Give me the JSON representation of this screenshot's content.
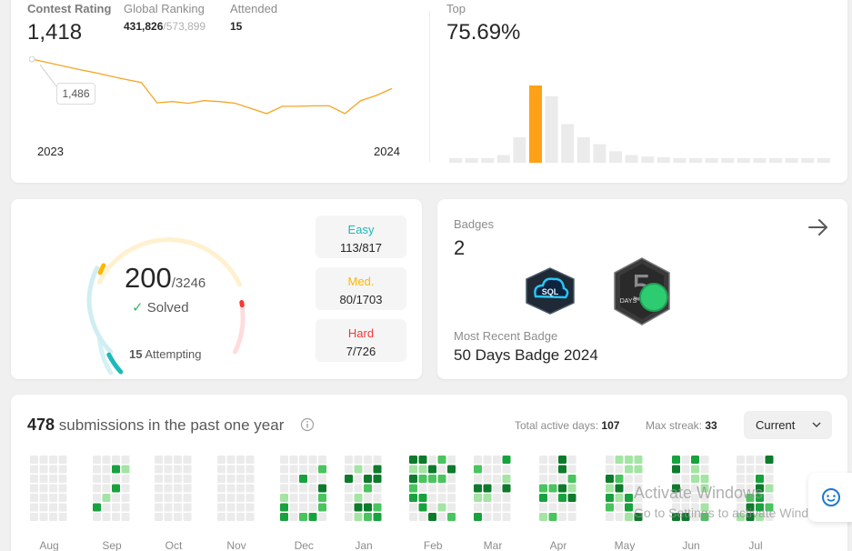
{
  "contest": {
    "rating_label": "Contest Rating",
    "rating_value": "1,418",
    "ranking_label": "Global Ranking",
    "ranking_value": "431,826",
    "ranking_total": "/573,899",
    "attended_label": "Attended",
    "attended_value": "15",
    "tooltip_value": "1,486",
    "year_start": "2023",
    "year_end": "2024",
    "line_color": "#f5a623",
    "rating_series": [
      1486,
      1478,
      1470,
      1462,
      1455,
      1447,
      1439,
      1432,
      1385,
      1388,
      1384,
      1390,
      1388,
      1384,
      1372,
      1360,
      1377,
      1377,
      1378,
      1378,
      1360,
      1390,
      1402,
      1418
    ]
  },
  "top": {
    "label": "Top",
    "value": "75.69%",
    "histogram_levels": [
      0.06,
      0.06,
      0.06,
      0.1,
      0.33,
      1.0,
      0.86,
      0.5,
      0.33,
      0.24,
      0.15,
      0.1,
      0.08,
      0.07,
      0.06,
      0.06,
      0.06,
      0.06,
      0.06,
      0.06,
      0.06,
      0.06,
      0.06,
      0.06
    ],
    "highlight_index": 5,
    "highlight_color": "#ffa116"
  },
  "solved": {
    "count": "200",
    "total": "/3246",
    "solved_label": "Solved",
    "attempting_count": "15",
    "attempting_label": "Attempting",
    "easy_label": "Easy",
    "easy_value": "113/817",
    "med_label": "Med.",
    "med_value": "80/1703",
    "hard_label": "Hard",
    "hard_value": "7/726",
    "easy_color": "#1cbaba",
    "med_color": "#ffb700",
    "hard_color": "#f63737"
  },
  "badges": {
    "label": "Badges",
    "count": "2",
    "recent_label": "Most Recent Badge",
    "recent_name": "50 Days Badge 2024",
    "badge1_text": "SQL",
    "badge2_text": "DAYS"
  },
  "submissions": {
    "count": "478",
    "text": "submissions in the past one year",
    "active_days_label": "Total active days:",
    "active_days_value": "107",
    "max_streak_label": "Max streak:",
    "max_streak_value": "33",
    "dropdown_value": "Current",
    "months": [
      "Aug",
      "Sep",
      "Oct",
      "Nov",
      "Dec",
      "Jan",
      "Feb",
      "Mar",
      "Apr",
      "May",
      "Jun",
      "Jul"
    ],
    "heat_colors": [
      "#ebebeb",
      "#a4e4a4",
      "#49c45e",
      "#18a23e",
      "#0e7a2b"
    ]
  },
  "watermark": {
    "line1": "Activate Windows",
    "line2": "Go to Settings to activate Windows."
  }
}
